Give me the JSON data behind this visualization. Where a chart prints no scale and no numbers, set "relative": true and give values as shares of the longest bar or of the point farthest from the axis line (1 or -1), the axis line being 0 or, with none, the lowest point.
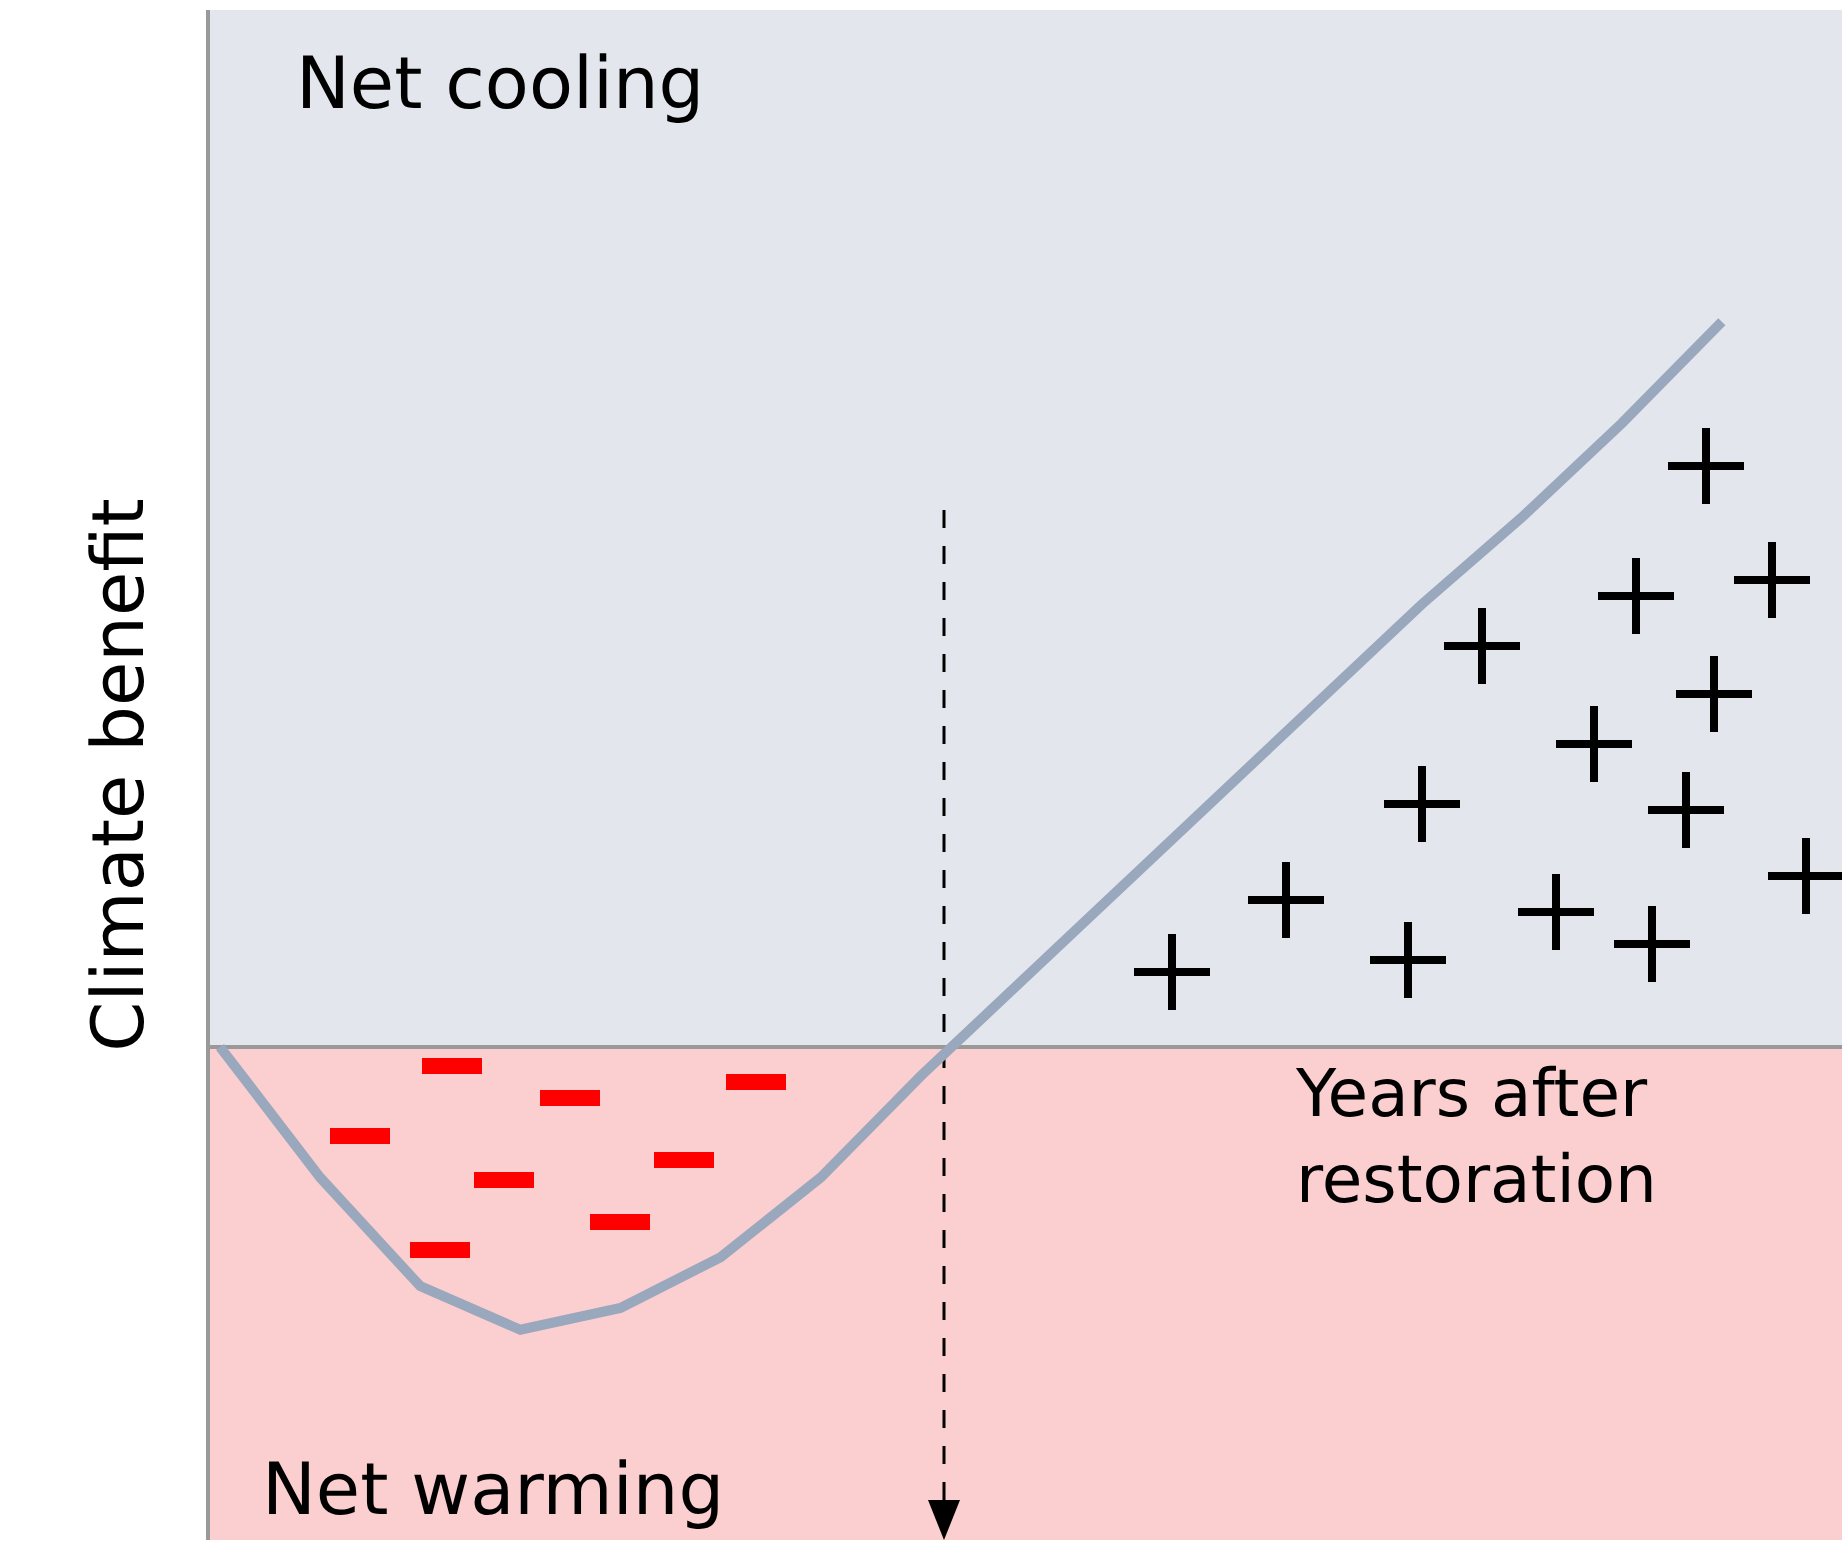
{
  "chart_data": {
    "type": "line",
    "relative": true,
    "xlabel": "Years after restoration",
    "ylabel": "Climate benefit",
    "categories": [
      null,
      null,
      null,
      null,
      null,
      null,
      null,
      null,
      null,
      null,
      null,
      null,
      null,
      null,
      null,
      null
    ],
    "marker": "none",
    "line_style": "solid",
    "series": [
      {
        "color": "#9aa8be",
        "values": [
          0,
          -0.18,
          -0.33,
          -0.39,
          -0.36,
          -0.29,
          -0.18,
          -0.04,
          0.09,
          0.22,
          0.35,
          0.48,
          0.61,
          0.73,
          0.86,
          1
        ]
      }
    ],
    "bands": [
      {
        "axis": "y",
        "from": 0,
        "to": 1.43,
        "label": "Net cooling",
        "color": "#c8d0dc"
      },
      {
        "axis": "y",
        "from": -0.68,
        "to": 0,
        "label": "Net warming",
        "color": "#f8a0a0"
      }
    ]
  }
}
